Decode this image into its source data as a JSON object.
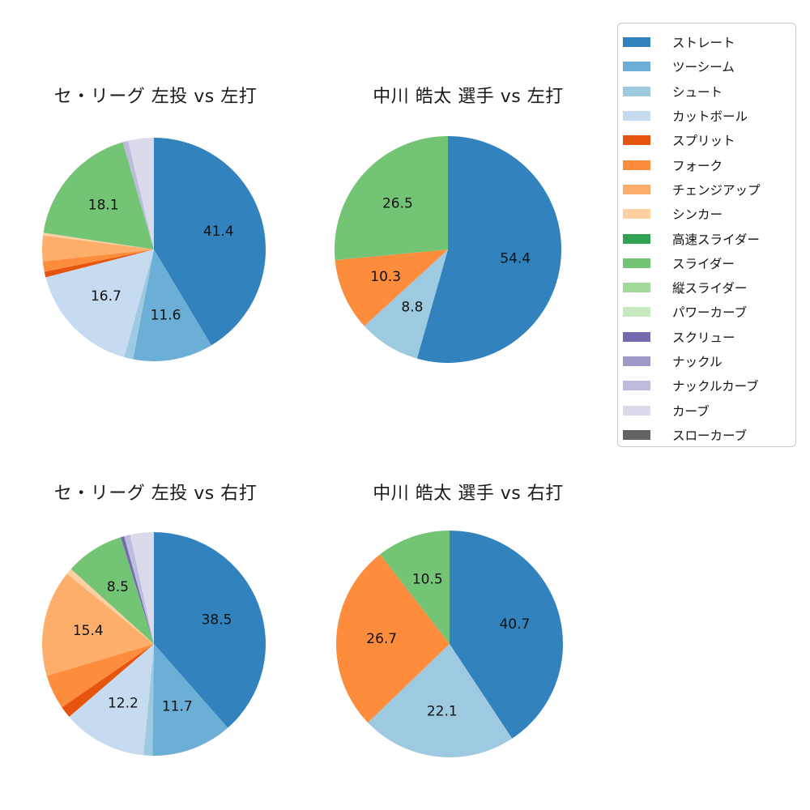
{
  "page": {
    "background_color": "#ffffff",
    "text_color": "#111111"
  },
  "legend": {
    "position": "right",
    "border_color": "#c8c8c8",
    "items": [
      {
        "label": "ストレート",
        "color": "#3182bd"
      },
      {
        "label": "ツーシーム",
        "color": "#6baed6"
      },
      {
        "label": "シュート",
        "color": "#9ecae1"
      },
      {
        "label": "カットボール",
        "color": "#c6dbef"
      },
      {
        "label": "スプリット",
        "color": "#e6550d"
      },
      {
        "label": "フォーク",
        "color": "#fd8d3c"
      },
      {
        "label": "チェンジアップ",
        "color": "#fdae6b"
      },
      {
        "label": "シンカー",
        "color": "#fdd0a2"
      },
      {
        "label": "高速スライダー",
        "color": "#31a354"
      },
      {
        "label": "スライダー",
        "color": "#74c476"
      },
      {
        "label": "縦スライダー",
        "color": "#a1d99b"
      },
      {
        "label": "パワーカーブ",
        "color": "#c7e9c0"
      },
      {
        "label": "スクリュー",
        "color": "#756bb1"
      },
      {
        "label": "ナックル",
        "color": "#9e9ac8"
      },
      {
        "label": "ナックルカーブ",
        "color": "#bcbddc"
      },
      {
        "label": "カーブ",
        "color": "#dadaeb"
      },
      {
        "label": "スローカーブ",
        "color": "#636363"
      }
    ]
  },
  "chart_data": [
    {
      "type": "pie",
      "title": "セ・リーグ 左投 vs 左打",
      "start_angle": "top",
      "direction": "clockwise",
      "pct_label_distance": 0.6,
      "slices": [
        {
          "pitch": "ストレート",
          "value": 41.4,
          "label": "41.4"
        },
        {
          "pitch": "ツーシーム",
          "value": 11.6,
          "label": "11.6"
        },
        {
          "pitch": "シュート",
          "value": 1.3,
          "label": ""
        },
        {
          "pitch": "カットボール",
          "value": 16.7,
          "label": "16.7"
        },
        {
          "pitch": "スプリット",
          "value": 0.8,
          "label": ""
        },
        {
          "pitch": "フォーク",
          "value": 1.5,
          "label": ""
        },
        {
          "pitch": "チェンジアップ",
          "value": 3.7,
          "label": ""
        },
        {
          "pitch": "シンカー",
          "value": 0.4,
          "label": ""
        },
        {
          "pitch": "スライダー",
          "value": 18.1,
          "label": "18.1"
        },
        {
          "pitch": "ナックルカーブ",
          "value": 0.8,
          "label": ""
        },
        {
          "pitch": "カーブ",
          "value": 3.7,
          "label": ""
        }
      ]
    },
    {
      "type": "pie",
      "title": "中川 皓太 選手 vs 左打",
      "start_angle": "top",
      "direction": "clockwise",
      "pct_label_distance": 0.6,
      "slices": [
        {
          "pitch": "ストレート",
          "value": 54.4,
          "label": "54.4"
        },
        {
          "pitch": "シュート",
          "value": 8.8,
          "label": "8.8"
        },
        {
          "pitch": "フォーク",
          "value": 10.3,
          "label": "10.3"
        },
        {
          "pitch": "スライダー",
          "value": 26.5,
          "label": "26.5"
        }
      ]
    },
    {
      "type": "pie",
      "title": "セ・リーグ 左投 vs 右打",
      "start_angle": "top",
      "direction": "clockwise",
      "pct_label_distance": 0.6,
      "slices": [
        {
          "pitch": "ストレート",
          "value": 38.5,
          "label": "38.5"
        },
        {
          "pitch": "ツーシーム",
          "value": 11.7,
          "label": "11.7"
        },
        {
          "pitch": "シュート",
          "value": 1.3,
          "label": ""
        },
        {
          "pitch": "カットボール",
          "value": 12.2,
          "label": "12.2"
        },
        {
          "pitch": "スプリット",
          "value": 1.7,
          "label": ""
        },
        {
          "pitch": "フォーク",
          "value": 5.0,
          "label": ""
        },
        {
          "pitch": "チェンジアップ",
          "value": 15.4,
          "label": "15.4"
        },
        {
          "pitch": "シンカー",
          "value": 0.9,
          "label": ""
        },
        {
          "pitch": "スライダー",
          "value": 8.5,
          "label": "8.5"
        },
        {
          "pitch": "スクリュー",
          "value": 0.5,
          "label": ""
        },
        {
          "pitch": "ナックルカーブ",
          "value": 0.9,
          "label": ""
        },
        {
          "pitch": "カーブ",
          "value": 3.4,
          "label": ""
        }
      ]
    },
    {
      "type": "pie",
      "title": "中川 皓太 選手 vs 右打",
      "start_angle": "top",
      "direction": "clockwise",
      "pct_label_distance": 0.6,
      "slices": [
        {
          "pitch": "ストレート",
          "value": 40.7,
          "label": "40.7"
        },
        {
          "pitch": "シュート",
          "value": 22.1,
          "label": "22.1"
        },
        {
          "pitch": "フォーク",
          "value": 26.7,
          "label": "26.7"
        },
        {
          "pitch": "スライダー",
          "value": 10.5,
          "label": "10.5"
        }
      ]
    }
  ]
}
